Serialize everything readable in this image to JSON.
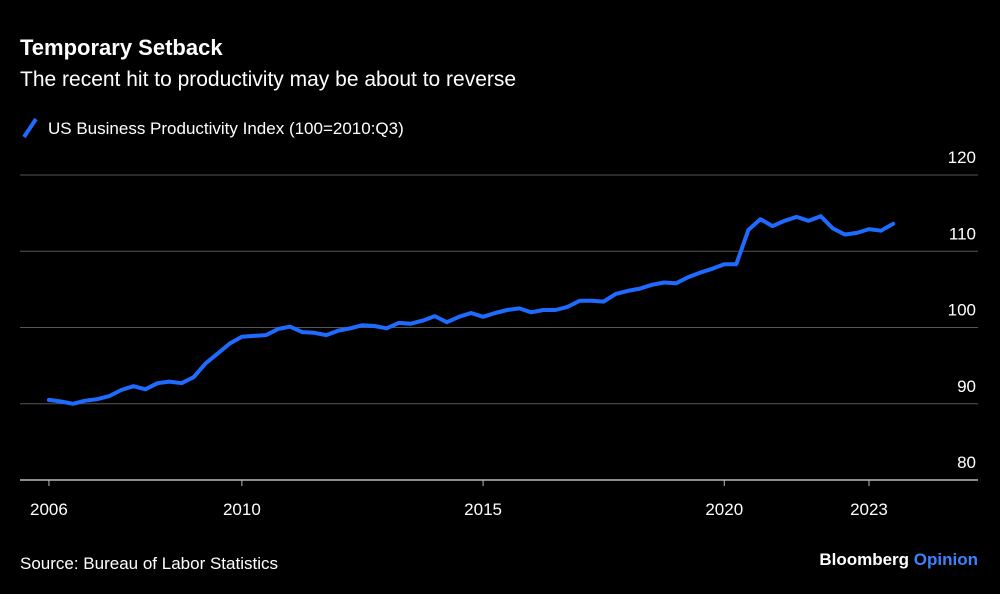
{
  "chart_data": {
    "type": "line",
    "title": "Temporary Setback",
    "subtitle": "The recent hit to productivity may be about to reverse",
    "source": "Source: Bureau of Labor Statistics",
    "brand": {
      "name": "Bloomberg",
      "section": "Opinion"
    },
    "x": [
      2006.0,
      2006.25,
      2006.5,
      2006.75,
      2007.0,
      2007.25,
      2007.5,
      2007.75,
      2008.0,
      2008.25,
      2008.5,
      2008.75,
      2009.0,
      2009.25,
      2009.5,
      2009.75,
      2010.0,
      2010.25,
      2010.5,
      2010.75,
      2011.0,
      2011.25,
      2011.5,
      2011.75,
      2012.0,
      2012.25,
      2012.5,
      2012.75,
      2013.0,
      2013.25,
      2013.5,
      2013.75,
      2014.0,
      2014.25,
      2014.5,
      2014.75,
      2015.0,
      2015.25,
      2015.5,
      2015.75,
      2016.0,
      2016.25,
      2016.5,
      2016.75,
      2017.0,
      2017.25,
      2017.5,
      2017.75,
      2018.0,
      2018.25,
      2018.5,
      2018.75,
      2019.0,
      2019.25,
      2019.5,
      2019.75,
      2020.0,
      2020.25,
      2020.5,
      2020.75,
      2021.0,
      2021.25,
      2021.5,
      2021.75,
      2022.0,
      2022.25,
      2022.5,
      2022.75,
      2023.0,
      2023.25,
      2023.5
    ],
    "series": [
      {
        "name": "US Business Productivity Index (100=2010:Q3)",
        "color": "#1f6bff",
        "values": [
          90.5,
          90.3,
          90.0,
          90.4,
          90.6,
          91.0,
          91.8,
          92.3,
          91.9,
          92.7,
          92.9,
          92.7,
          93.5,
          95.3,
          96.6,
          97.9,
          98.8,
          98.9,
          99.0,
          99.8,
          100.1,
          99.4,
          99.3,
          99.0,
          99.6,
          99.9,
          100.3,
          100.2,
          99.9,
          100.6,
          100.5,
          100.9,
          101.5,
          100.7,
          101.4,
          101.9,
          101.4,
          101.9,
          102.3,
          102.5,
          102.0,
          102.3,
          102.3,
          102.7,
          103.5,
          103.5,
          103.4,
          104.4,
          104.8,
          105.1,
          105.6,
          105.9,
          105.8,
          106.6,
          107.2,
          107.7,
          108.3,
          108.3,
          112.8,
          114.2,
          113.3,
          114.0,
          114.5,
          114.0,
          114.6,
          113.0,
          112.2,
          112.4,
          112.9,
          112.7,
          113.6
        ]
      }
    ],
    "xlim": [
      2005.4,
      2025.26
    ],
    "xticks": [
      2006,
      2010,
      2015,
      2020,
      2023
    ],
    "ylim": [
      80,
      120
    ],
    "yticks": [
      80,
      90,
      100,
      110,
      120
    ],
    "grid": true
  }
}
